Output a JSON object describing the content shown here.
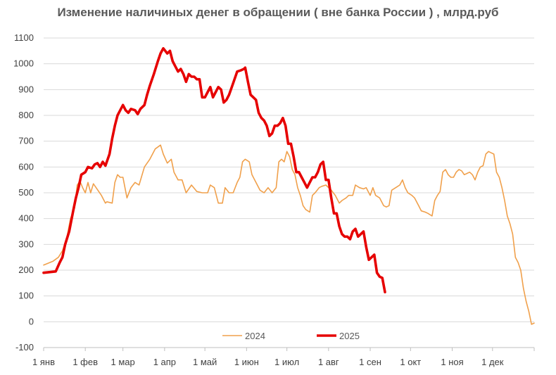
{
  "chart_data": {
    "type": "line",
    "title": "Изменение наличиных денег в обращении ( вне банка России ) , млрд.руб",
    "xlabel": "",
    "ylabel": "",
    "ylim": [
      -100,
      1100
    ],
    "yticks": [
      -100,
      0,
      100,
      200,
      300,
      400,
      500,
      600,
      700,
      800,
      900,
      1000,
      1100
    ],
    "xlim_day_of_year": [
      1,
      366
    ],
    "xticks": [
      {
        "label": "1 янв",
        "day": 1
      },
      {
        "label": "1 фев",
        "day": 32
      },
      {
        "label": "1 мар",
        "day": 60
      },
      {
        "label": "1 апр",
        "day": 91
      },
      {
        "label": "1 май",
        "day": 121
      },
      {
        "label": "1 июн",
        "day": 152
      },
      {
        "label": "1 июл",
        "day": 182
      },
      {
        "label": "1 авг",
        "day": 213
      },
      {
        "label": "1 сен",
        "day": 244
      },
      {
        "label": "1 окт",
        "day": 274
      },
      {
        "label": "1 ноя",
        "day": 305
      },
      {
        "label": "1 дек",
        "day": 335
      }
    ],
    "grid": true,
    "legend_position": "bottom",
    "series": [
      {
        "name": "2024",
        "color": "#F0A04B",
        "points": [
          [
            1,
            220
          ],
          [
            8,
            235
          ],
          [
            12,
            250
          ],
          [
            15,
            275
          ],
          [
            18,
            320
          ],
          [
            21,
            400
          ],
          [
            24,
            440
          ],
          [
            26,
            530
          ],
          [
            28,
            545
          ],
          [
            30,
            520
          ],
          [
            32,
            500
          ],
          [
            34,
            540
          ],
          [
            36,
            500
          ],
          [
            38,
            535
          ],
          [
            40,
            520
          ],
          [
            44,
            490
          ],
          [
            47,
            460
          ],
          [
            48,
            465
          ],
          [
            52,
            460
          ],
          [
            54,
            540
          ],
          [
            56,
            570
          ],
          [
            58,
            560
          ],
          [
            60,
            560
          ],
          [
            63,
            480
          ],
          [
            66,
            520
          ],
          [
            69,
            540
          ],
          [
            72,
            530
          ],
          [
            76,
            600
          ],
          [
            80,
            630
          ],
          [
            84,
            670
          ],
          [
            88,
            685
          ],
          [
            90,
            650
          ],
          [
            93,
            615
          ],
          [
            96,
            630
          ],
          [
            98,
            580
          ],
          [
            101,
            550
          ],
          [
            104,
            550
          ],
          [
            107,
            500
          ],
          [
            111,
            530
          ],
          [
            115,
            505
          ],
          [
            119,
            500
          ],
          [
            123,
            500
          ],
          [
            125,
            530
          ],
          [
            128,
            520
          ],
          [
            131,
            460
          ],
          [
            134,
            460
          ],
          [
            136,
            520
          ],
          [
            139,
            500
          ],
          [
            142,
            500
          ],
          [
            145,
            540
          ],
          [
            147,
            560
          ],
          [
            149,
            620
          ],
          [
            151,
            630
          ],
          [
            154,
            620
          ],
          [
            156,
            570
          ],
          [
            159,
            540
          ],
          [
            162,
            510
          ],
          [
            165,
            500
          ],
          [
            168,
            520
          ],
          [
            171,
            500
          ],
          [
            174,
            520
          ],
          [
            176,
            620
          ],
          [
            178,
            630
          ],
          [
            180,
            620
          ],
          [
            182,
            660
          ],
          [
            184,
            640
          ],
          [
            186,
            590
          ],
          [
            188,
            570
          ],
          [
            190,
            520
          ],
          [
            192,
            490
          ],
          [
            194,
            450
          ],
          [
            196,
            435
          ],
          [
            199,
            425
          ],
          [
            201,
            490
          ],
          [
            203,
            500
          ],
          [
            206,
            520
          ],
          [
            208,
            525
          ],
          [
            211,
            530
          ],
          [
            213,
            520
          ],
          [
            215,
            510
          ],
          [
            218,
            490
          ],
          [
            221,
            460
          ],
          [
            223,
            470
          ],
          [
            226,
            480
          ],
          [
            228,
            490
          ],
          [
            231,
            490
          ],
          [
            233,
            530
          ],
          [
            236,
            520
          ],
          [
            239,
            515
          ],
          [
            241,
            520
          ],
          [
            244,
            490
          ],
          [
            246,
            520
          ],
          [
            248,
            490
          ],
          [
            251,
            480
          ],
          [
            254,
            450
          ],
          [
            256,
            445
          ],
          [
            258,
            450
          ],
          [
            260,
            510
          ],
          [
            263,
            520
          ],
          [
            266,
            530
          ],
          [
            268,
            550
          ],
          [
            270,
            520
          ],
          [
            272,
            500
          ],
          [
            275,
            490
          ],
          [
            277,
            480
          ],
          [
            280,
            450
          ],
          [
            282,
            430
          ],
          [
            285,
            425
          ],
          [
            287,
            420
          ],
          [
            290,
            410
          ],
          [
            292,
            470
          ],
          [
            294,
            490
          ],
          [
            296,
            505
          ],
          [
            298,
            580
          ],
          [
            300,
            590
          ],
          [
            302,
            570
          ],
          [
            304,
            560
          ],
          [
            306,
            560
          ],
          [
            308,
            580
          ],
          [
            310,
            590
          ],
          [
            312,
            585
          ],
          [
            314,
            570
          ],
          [
            316,
            575
          ],
          [
            318,
            580
          ],
          [
            320,
            570
          ],
          [
            322,
            550
          ],
          [
            324,
            580
          ],
          [
            326,
            600
          ],
          [
            328,
            605
          ],
          [
            330,
            650
          ],
          [
            332,
            660
          ],
          [
            334,
            655
          ],
          [
            336,
            650
          ],
          [
            338,
            580
          ],
          [
            340,
            560
          ],
          [
            342,
            520
          ],
          [
            344,
            470
          ],
          [
            346,
            410
          ],
          [
            348,
            380
          ],
          [
            350,
            340
          ],
          [
            352,
            250
          ],
          [
            354,
            230
          ],
          [
            356,
            200
          ],
          [
            358,
            130
          ],
          [
            360,
            80
          ],
          [
            362,
            40
          ],
          [
            364,
            -10
          ],
          [
            366,
            -5
          ]
        ]
      },
      {
        "name": "2025",
        "color": "#E60000",
        "points": [
          [
            1,
            190
          ],
          [
            10,
            195
          ],
          [
            13,
            230
          ],
          [
            15,
            250
          ],
          [
            17,
            300
          ],
          [
            20,
            350
          ],
          [
            23,
            430
          ],
          [
            25,
            480
          ],
          [
            27,
            520
          ],
          [
            29,
            570
          ],
          [
            32,
            580
          ],
          [
            34,
            600
          ],
          [
            37,
            595
          ],
          [
            39,
            610
          ],
          [
            41,
            615
          ],
          [
            43,
            600
          ],
          [
            45,
            620
          ],
          [
            47,
            605
          ],
          [
            50,
            650
          ],
          [
            52,
            710
          ],
          [
            54,
            760
          ],
          [
            56,
            800
          ],
          [
            58,
            820
          ],
          [
            60,
            840
          ],
          [
            62,
            820
          ],
          [
            64,
            810
          ],
          [
            66,
            825
          ],
          [
            69,
            820
          ],
          [
            71,
            805
          ],
          [
            73,
            825
          ],
          [
            76,
            840
          ],
          [
            78,
            880
          ],
          [
            80,
            915
          ],
          [
            83,
            960
          ],
          [
            86,
            1010
          ],
          [
            88,
            1040
          ],
          [
            90,
            1060
          ],
          [
            93,
            1040
          ],
          [
            95,
            1050
          ],
          [
            97,
            1010
          ],
          [
            99,
            990
          ],
          [
            101,
            970
          ],
          [
            103,
            980
          ],
          [
            105,
            960
          ],
          [
            107,
            930
          ],
          [
            109,
            960
          ],
          [
            111,
            950
          ],
          [
            113,
            950
          ],
          [
            115,
            940
          ],
          [
            117,
            940
          ],
          [
            119,
            870
          ],
          [
            121,
            870
          ],
          [
            123,
            890
          ],
          [
            125,
            910
          ],
          [
            127,
            870
          ],
          [
            129,
            890
          ],
          [
            131,
            910
          ],
          [
            133,
            900
          ],
          [
            135,
            850
          ],
          [
            137,
            860
          ],
          [
            139,
            880
          ],
          [
            142,
            925
          ],
          [
            145,
            970
          ],
          [
            148,
            975
          ],
          [
            150,
            980
          ],
          [
            151,
            985
          ],
          [
            153,
            930
          ],
          [
            155,
            880
          ],
          [
            157,
            870
          ],
          [
            159,
            860
          ],
          [
            161,
            810
          ],
          [
            163,
            790
          ],
          [
            165,
            780
          ],
          [
            167,
            760
          ],
          [
            169,
            720
          ],
          [
            171,
            730
          ],
          [
            173,
            760
          ],
          [
            175,
            760
          ],
          [
            177,
            770
          ],
          [
            179,
            790
          ],
          [
            181,
            760
          ],
          [
            183,
            690
          ],
          [
            185,
            690
          ],
          [
            187,
            640
          ],
          [
            189,
            580
          ],
          [
            191,
            580
          ],
          [
            193,
            560
          ],
          [
            195,
            540
          ],
          [
            197,
            520
          ],
          [
            199,
            540
          ],
          [
            201,
            560
          ],
          [
            203,
            560
          ],
          [
            205,
            580
          ],
          [
            207,
            610
          ],
          [
            209,
            620
          ],
          [
            211,
            550
          ],
          [
            213,
            550
          ],
          [
            215,
            480
          ],
          [
            217,
            420
          ],
          [
            219,
            420
          ],
          [
            221,
            370
          ],
          [
            223,
            340
          ],
          [
            225,
            330
          ],
          [
            227,
            330
          ],
          [
            229,
            320
          ],
          [
            231,
            350
          ],
          [
            233,
            360
          ],
          [
            235,
            330
          ],
          [
            237,
            340
          ],
          [
            239,
            350
          ],
          [
            241,
            290
          ],
          [
            243,
            240
          ],
          [
            245,
            250
          ],
          [
            247,
            260
          ],
          [
            249,
            190
          ],
          [
            251,
            175
          ],
          [
            253,
            170
          ],
          [
            255,
            115
          ]
        ]
      }
    ]
  }
}
